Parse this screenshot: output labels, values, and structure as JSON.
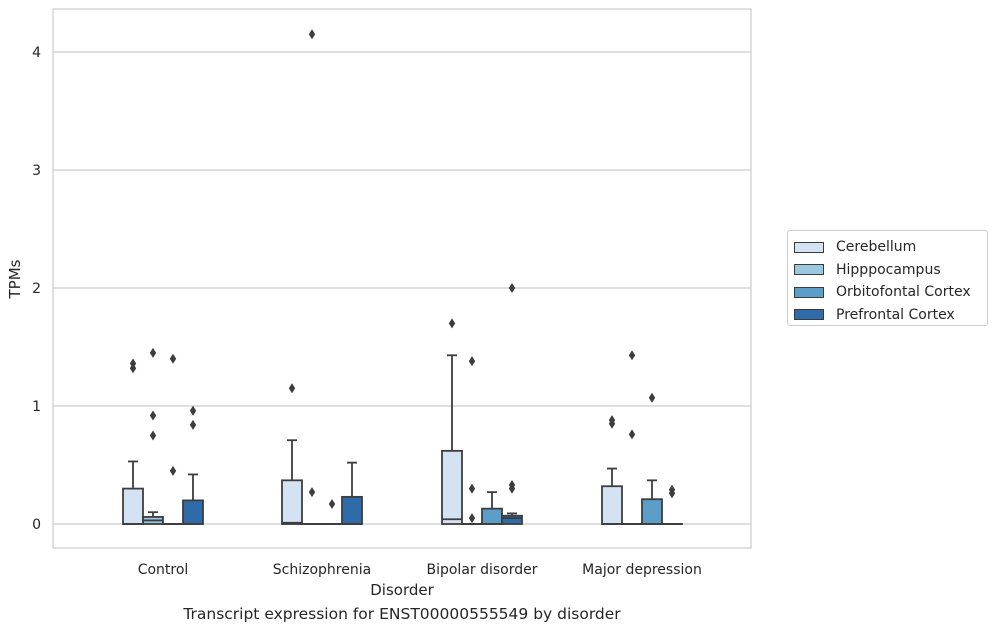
{
  "caption": "Transcript expression for ENST00000555549 by disorder",
  "chart_data": {
    "type": "box",
    "xlabel": "Disorder",
    "ylabel": "TPMs",
    "ylim": [
      -0.2,
      4.35
    ],
    "yticks": [
      0,
      1,
      2,
      3,
      4
    ],
    "grid": true,
    "legend_position": "right",
    "categories": [
      "Control",
      "Schizophrenia",
      "Bipolar disorder",
      "Major depression"
    ],
    "series": [
      {
        "name": "Cerebellum",
        "color": "#d3e3f3",
        "boxes": [
          {
            "q1": 0,
            "median": 0,
            "q3": 0.3,
            "whisker_low": 0,
            "whisker_high": 0.53,
            "outliers": [
              1.32,
              1.36
            ]
          },
          {
            "q1": 0,
            "median": 0.01,
            "q3": 0.37,
            "whisker_low": 0,
            "whisker_high": 0.71,
            "outliers": [
              1.15
            ]
          },
          {
            "q1": 0,
            "median": 0.04,
            "q3": 0.62,
            "whisker_low": 0,
            "whisker_high": 1.43,
            "outliers": [
              1.7
            ]
          },
          {
            "q1": 0,
            "median": 0,
            "q3": 0.32,
            "whisker_low": 0,
            "whisker_high": 0.47,
            "outliers": [
              0.85,
              0.88
            ]
          }
        ]
      },
      {
        "name": "Hipppocampus",
        "color": "#9ac8e0",
        "boxes": [
          {
            "q1": 0,
            "median": 0.03,
            "q3": 0.06,
            "whisker_low": 0,
            "whisker_high": 0.1,
            "outliers": [
              0.75,
              0.92,
              1.45
            ]
          },
          {
            "q1": 0,
            "median": 0,
            "q3": 0,
            "whisker_low": 0,
            "whisker_high": 0,
            "outliers": [
              0.27,
              4.15
            ]
          },
          {
            "q1": 0,
            "median": 0,
            "q3": 0,
            "whisker_low": 0,
            "whisker_high": 0,
            "outliers": [
              0.05,
              0.3,
              1.38
            ]
          },
          {
            "q1": 0,
            "median": 0,
            "q3": 0,
            "whisker_low": 0,
            "whisker_high": 0,
            "outliers": [
              0.76,
              1.43
            ]
          }
        ]
      },
      {
        "name": "Orbitofontal Cortex",
        "color": "#5a9ec9",
        "boxes": [
          {
            "q1": 0,
            "median": 0,
            "q3": 0,
            "whisker_low": 0,
            "whisker_high": 0,
            "outliers": [
              0.45,
              1.4
            ]
          },
          {
            "q1": 0,
            "median": 0,
            "q3": 0,
            "whisker_low": 0,
            "whisker_high": 0,
            "outliers": [
              0.17
            ]
          },
          {
            "q1": 0,
            "median": 0,
            "q3": 0.13,
            "whisker_low": 0,
            "whisker_high": 0.27,
            "outliers": []
          },
          {
            "q1": 0,
            "median": 0,
            "q3": 0.21,
            "whisker_low": 0,
            "whisker_high": 0.37,
            "outliers": [
              1.07
            ]
          }
        ]
      },
      {
        "name": "Prefrontal Cortex",
        "color": "#2d6ca8",
        "boxes": [
          {
            "q1": 0,
            "median": 0,
            "q3": 0.2,
            "whisker_low": 0,
            "whisker_high": 0.42,
            "outliers": [
              0.84,
              0.96
            ]
          },
          {
            "q1": 0,
            "median": 0,
            "q3": 0.23,
            "whisker_low": 0,
            "whisker_high": 0.52,
            "outliers": []
          },
          {
            "q1": 0,
            "median": 0.05,
            "q3": 0.07,
            "whisker_low": 0,
            "whisker_high": 0.09,
            "outliers": [
              0.3,
              0.33,
              2.0
            ]
          },
          {
            "q1": 0,
            "median": 0,
            "q3": 0,
            "whisker_low": 0,
            "whisker_high": 0,
            "outliers": [
              0.26,
              0.29
            ]
          }
        ]
      }
    ]
  }
}
